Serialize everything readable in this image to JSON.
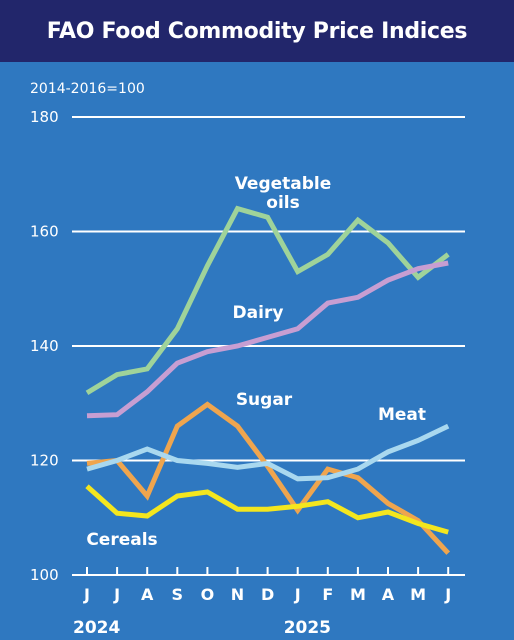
{
  "title": "FAO Food Commodity Price Indices",
  "colors": {
    "background": "#2f78c0",
    "title_bar": "#22266b",
    "grid": "#ffffff",
    "Vegetable oils": "#9fd39a",
    "Dairy": "#c79ed2",
    "Sugar": "#efa54e",
    "Meat": "#a9d8ef",
    "Cereals": "#f4e61e"
  },
  "chart_data": {
    "type": "line",
    "unit_label": "2014-2016=100",
    "ylim": [
      100,
      180
    ],
    "yticks": [
      "100",
      "120",
      "140",
      "160",
      "180"
    ],
    "grid": true,
    "categories": [
      "J",
      "J",
      "A",
      "S",
      "O",
      "N",
      "D",
      "J",
      "F",
      "M",
      "A",
      "M",
      "J"
    ],
    "year_labels": [
      {
        "label": "2024",
        "at_index": 0
      },
      {
        "label": "2025",
        "at_index": 7
      }
    ],
    "series": [
      {
        "name": "Vegetable oils",
        "label_lines": [
          "Vegetable",
          "oils"
        ],
        "values": [
          131.8,
          135,
          136,
          143,
          154,
          164,
          162.5,
          153,
          156,
          162,
          158,
          152,
          156
        ]
      },
      {
        "name": "Dairy",
        "label_lines": [
          "Dairy"
        ],
        "values": [
          127.8,
          128,
          132,
          137,
          139,
          140,
          141.5,
          143,
          147.5,
          148.5,
          151.5,
          153.5,
          154.5
        ]
      },
      {
        "name": "Sugar",
        "label_lines": [
          "Sugar"
        ],
        "values": [
          119.5,
          120,
          113.8,
          126,
          129.8,
          126,
          119,
          111.3,
          118.5,
          117,
          112.5,
          109.5,
          103.8
        ]
      },
      {
        "name": "Meat",
        "label_lines": [
          "Meat"
        ],
        "values": [
          118.5,
          120,
          122,
          120,
          119.5,
          118.8,
          119.5,
          116.8,
          117,
          118.5,
          121.5,
          123.5,
          126
        ]
      },
      {
        "name": "Cereals",
        "label_lines": [
          "Cereals"
        ],
        "values": [
          115.5,
          110.8,
          110.3,
          113.8,
          114.5,
          111.5,
          111.5,
          112,
          112.8,
          110,
          111,
          109,
          107.5
        ]
      }
    ]
  }
}
